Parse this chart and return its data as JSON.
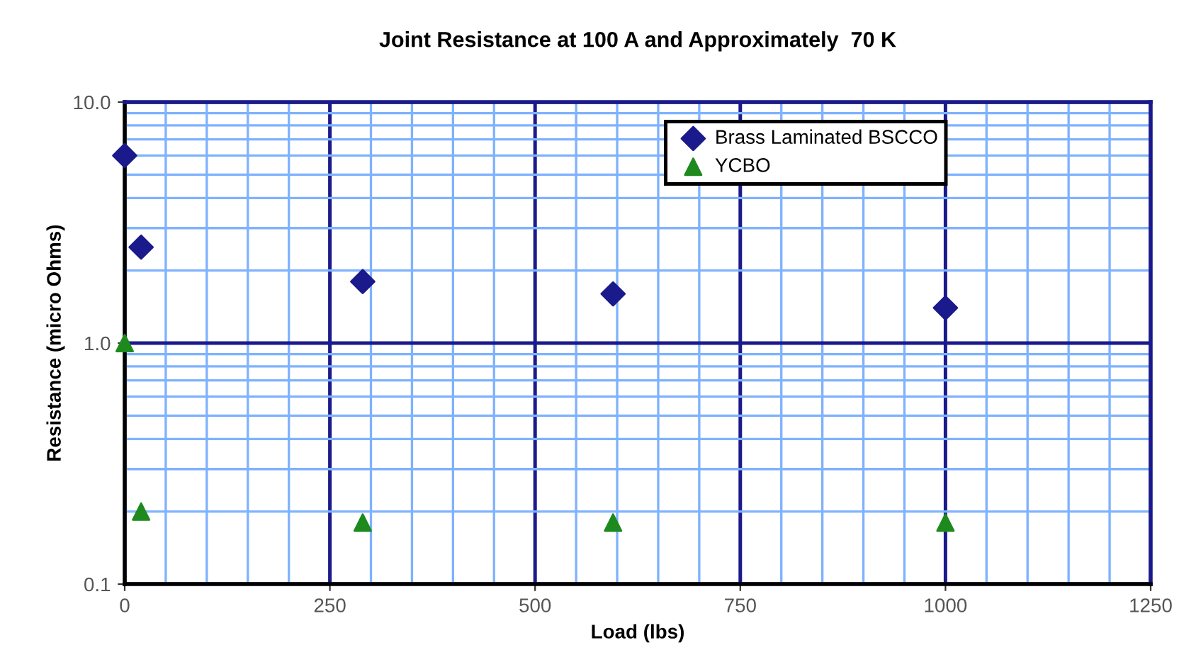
{
  "chart_data": {
    "type": "scatter",
    "title": "Joint Resistance at 100 A and Approximately  70 K",
    "xlabel": "Load (lbs)",
    "ylabel": "Resistance (micro Ohms)",
    "series": [
      {
        "name": "Brass Laminated BSCCO",
        "color": "#1a1a8c",
        "marker": "diamond",
        "x": [
          0,
          20,
          290,
          595,
          1000
        ],
        "values": [
          6.0,
          2.5,
          1.8,
          1.6,
          1.4
        ]
      },
      {
        "name": "YCBO",
        "color": "#1e8a1e",
        "marker": "triangle",
        "x": [
          0,
          20,
          290,
          595,
          1000
        ],
        "values": [
          1.0,
          0.2,
          0.18,
          0.18,
          0.18
        ]
      }
    ],
    "xlim": [
      0,
      1250
    ],
    "xticks": [
      0,
      {
        "value": 50,
        "label": null
      },
      {
        "value": 100,
        "label": null
      },
      {
        "value": 150,
        "label": null
      },
      {
        "value": 200,
        "label": null
      },
      250,
      {
        "value": 300,
        "label": null
      },
      {
        "value": 350,
        "label": null
      },
      {
        "value": 400,
        "label": null
      },
      {
        "value": 450,
        "label": null
      },
      500,
      {
        "value": 550,
        "label": null
      },
      {
        "value": 600,
        "label": null
      },
      {
        "value": 650,
        "label": null
      },
      {
        "value": 700,
        "label": null
      },
      750,
      {
        "value": 800,
        "label": null
      },
      {
        "value": 850,
        "label": null
      },
      {
        "value": 900,
        "label": null
      },
      {
        "value": 950,
        "label": null
      },
      1000,
      {
        "value": 1050,
        "label": null
      },
      {
        "value": 1100,
        "label": null
      },
      {
        "value": 1150,
        "label": null
      },
      {
        "value": 1200,
        "label": null
      },
      1250
    ],
    "ylim": [
      0.1,
      10
    ],
    "yticks": [
      {
        "value": 0.1,
        "label": "0.1"
      },
      {
        "value": 0.2,
        "label": null
      },
      {
        "value": 0.3,
        "label": null
      },
      {
        "value": 0.4,
        "label": null
      },
      {
        "value": 0.5,
        "label": null
      },
      {
        "value": 0.6,
        "label": null
      },
      {
        "value": 0.7,
        "label": null
      },
      {
        "value": 0.8,
        "label": null
      },
      {
        "value": 0.9,
        "label": null
      },
      {
        "value": 1,
        "label": "1.0"
      },
      {
        "value": 2,
        "label": null
      },
      {
        "value": 3,
        "label": null
      },
      {
        "value": 4,
        "label": null
      },
      {
        "value": 5,
        "label": null
      },
      {
        "value": 6,
        "label": null
      },
      {
        "value": 7,
        "label": null
      },
      {
        "value": 8,
        "label": null
      },
      {
        "value": 9,
        "label": null
      },
      {
        "value": 10,
        "label": "10.0"
      }
    ],
    "log": "y",
    "grid": true,
    "legend": "top right"
  }
}
